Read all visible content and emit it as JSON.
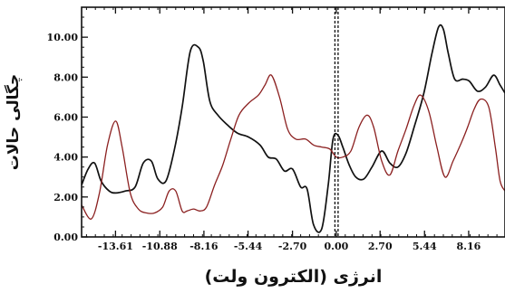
{
  "chart_data": {
    "type": "line",
    "xlabel": "انرژی (الکترون ولت)",
    "ylabel": "چگالی حالات",
    "x_ticks": [
      -13.61,
      -10.88,
      -8.16,
      -5.44,
      -2.7,
      0.0,
      2.7,
      5.44,
      8.16
    ],
    "x_tick_labels": [
      "-13.61",
      "-10.88",
      "-8.16",
      "-5.44",
      "-2.70",
      "0.00",
      "2.70",
      "5.44",
      "8.16"
    ],
    "y_ticks": [
      0,
      2,
      4,
      6,
      8,
      10
    ],
    "y_tick_labels": [
      "0.00",
      "2.00",
      "4.00",
      "6.00",
      "8.00",
      "10.00"
    ],
    "xlim": [
      -15.7,
      10.4
    ],
    "ylim": [
      0,
      11.5
    ],
    "fermi_level": 0,
    "grid": false,
    "series": [
      {
        "color": "#111111",
        "x": [
          -15.7,
          -15.3,
          -14.9,
          -14.5,
          -14.0,
          -13.6,
          -13.0,
          -12.4,
          -11.9,
          -11.4,
          -11.0,
          -10.5,
          -10.0,
          -9.5,
          -9.0,
          -8.5,
          -8.2,
          -7.8,
          -7.3,
          -6.7,
          -6.1,
          -5.4,
          -4.7,
          -4.2,
          -3.7,
          -3.2,
          -2.7,
          -2.2,
          -1.8,
          -1.4,
          -0.9,
          -0.5,
          -0.2,
          0.1,
          0.4,
          0.8,
          1.2,
          1.7,
          2.2,
          2.8,
          3.3,
          3.8,
          4.3,
          4.8,
          5.4,
          5.9,
          6.3,
          6.6,
          6.9,
          7.3,
          7.8,
          8.2,
          8.7,
          9.2,
          9.7,
          10.1,
          10.4
        ],
        "y": [
          2.6,
          3.4,
          3.7,
          2.8,
          2.3,
          2.2,
          2.3,
          2.5,
          3.7,
          3.8,
          2.9,
          2.8,
          4.3,
          6.5,
          9.3,
          9.5,
          8.8,
          6.8,
          6.1,
          5.6,
          5.2,
          5.0,
          4.6,
          4.0,
          3.9,
          3.3,
          3.4,
          2.5,
          2.4,
          0.6,
          0.4,
          2.6,
          4.9,
          5.1,
          4.5,
          3.6,
          3.0,
          2.9,
          3.5,
          4.3,
          3.7,
          3.5,
          4.2,
          5.5,
          7.2,
          9.2,
          10.5,
          10.4,
          9.2,
          7.9,
          7.9,
          7.8,
          7.3,
          7.5,
          8.1,
          7.6,
          7.2
        ]
      },
      {
        "color": "#8b2020",
        "x": [
          -15.7,
          -15.1,
          -14.6,
          -14.1,
          -13.6,
          -13.2,
          -12.7,
          -12.2,
          -11.7,
          -11.2,
          -10.7,
          -10.3,
          -9.9,
          -9.5,
          -9.2,
          -8.8,
          -8.4,
          -8.0,
          -7.5,
          -7.0,
          -6.5,
          -6.0,
          -5.4,
          -4.8,
          -4.4,
          -4.0,
          -3.5,
          -3.0,
          -2.5,
          -1.9,
          -1.4,
          -0.9,
          -0.4,
          0.0,
          0.4,
          0.9,
          1.4,
          1.9,
          2.3,
          2.8,
          3.3,
          3.8,
          4.3,
          4.8,
          5.2,
          5.7,
          6.2,
          6.7,
          7.2,
          7.7,
          8.1,
          8.5,
          8.9,
          9.4,
          9.8,
          10.1,
          10.4
        ],
        "y": [
          1.6,
          0.9,
          2.2,
          4.6,
          5.8,
          4.5,
          2.2,
          1.4,
          1.2,
          1.2,
          1.5,
          2.3,
          2.3,
          1.3,
          1.3,
          1.4,
          1.3,
          1.5,
          2.6,
          3.6,
          4.9,
          6.1,
          6.7,
          7.1,
          7.6,
          8.1,
          7.0,
          5.4,
          4.9,
          4.9,
          4.6,
          4.5,
          4.4,
          4.0,
          4.0,
          4.3,
          5.5,
          6.1,
          5.5,
          3.8,
          3.1,
          4.3,
          5.4,
          6.6,
          7.1,
          6.3,
          4.5,
          3.0,
          3.8,
          4.7,
          5.5,
          6.4,
          6.9,
          6.5,
          4.5,
          2.8,
          2.3
        ]
      }
    ]
  }
}
